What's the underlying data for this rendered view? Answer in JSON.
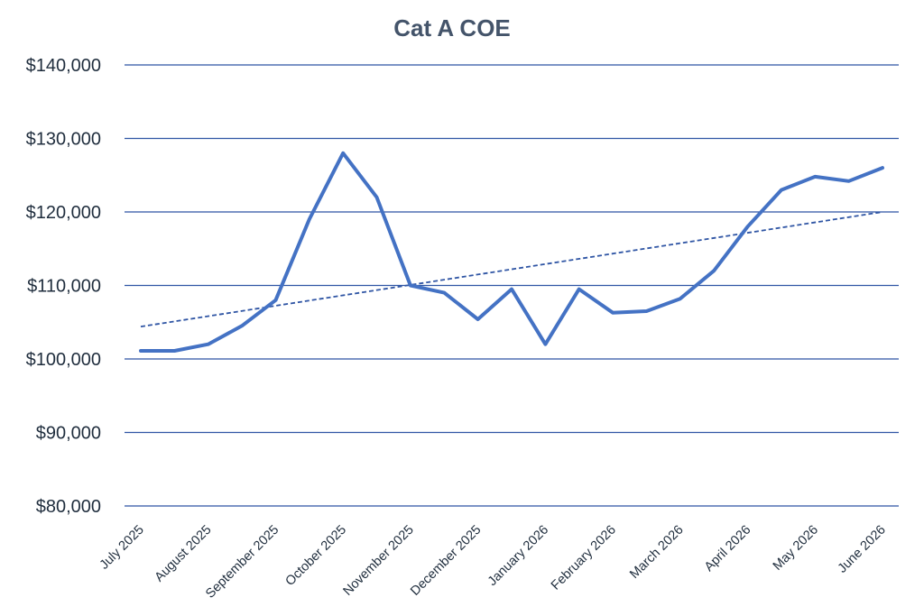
{
  "chart_data": {
    "type": "line",
    "title": "Cat A COE",
    "xlabel": "",
    "ylabel": "",
    "ylim": [
      80000,
      140000
    ],
    "yticks": [
      80000,
      90000,
      100000,
      110000,
      120000,
      130000,
      140000
    ],
    "ytick_labels": [
      "$80,000",
      "$90,000",
      "$100,000",
      "$110,000",
      "$120,000",
      "$130,000",
      "$140,000"
    ],
    "xtick_labels": [
      "July 2025",
      "August 2025",
      "September 2025",
      "October 2025",
      "November 2025",
      "December 2025",
      "January 2026",
      "February 2026",
      "March 2026",
      "April 2026",
      "May 2026",
      "June 2026"
    ],
    "grid": true,
    "legend": "none",
    "colors": {
      "series": "#4472c4",
      "grid": "#2f55a4",
      "title": "#44546a",
      "text": "#1f2d3d"
    },
    "series": [
      {
        "values": [
          101100,
          101100,
          102000,
          104500,
          108000,
          119000,
          128000,
          122000,
          110000,
          109000,
          105400,
          109500,
          102000,
          109500,
          106300,
          106500,
          108200,
          112000,
          118000,
          123000,
          124800,
          124200,
          126000
        ]
      }
    ],
    "trendline": {
      "style": "dashed",
      "start": 104400,
      "end": 120000
    }
  }
}
